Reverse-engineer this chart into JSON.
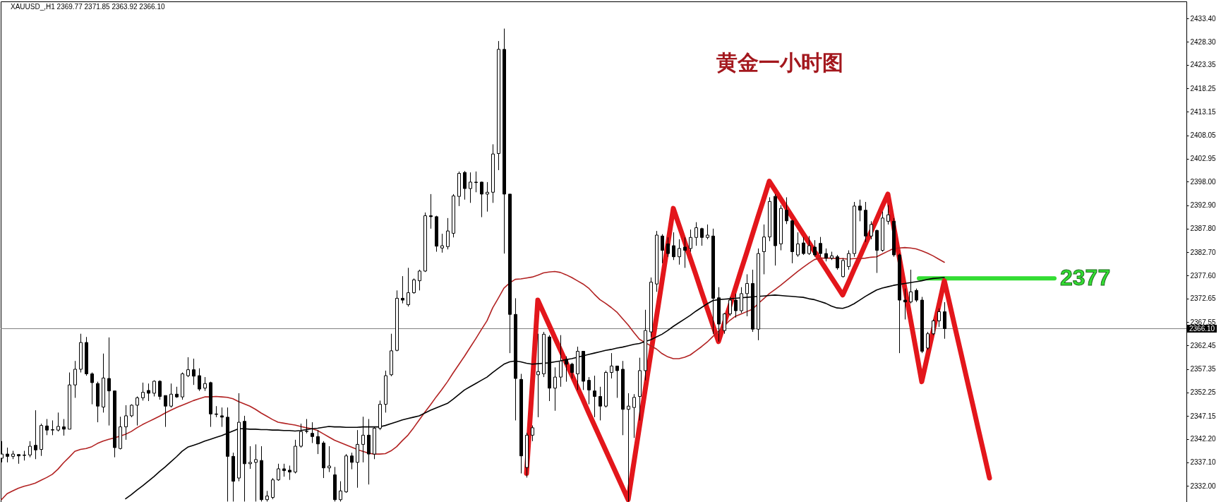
{
  "chart_data": {
    "type": "candlestick",
    "title": "黄金一小时图",
    "subtitle": "XAUUSD_,H1 2369.77 2371.85 2363.92 2366.10",
    "color": "#000000",
    "categories": [
      null,
      null,
      null,
      null,
      null,
      null,
      null,
      null,
      null,
      null,
      null,
      null,
      null,
      null,
      null,
      null,
      null,
      null,
      null,
      null,
      null,
      null,
      null,
      null,
      null,
      null,
      null,
      null,
      null,
      null,
      null,
      null,
      null,
      null,
      null,
      null,
      null,
      null,
      null,
      null,
      null,
      null,
      null,
      null,
      null,
      null,
      null,
      null,
      null,
      null,
      null,
      null,
      null,
      null,
      null,
      null,
      null,
      null,
      null,
      null,
      null,
      null,
      null,
      null,
      null,
      null,
      null,
      null,
      null,
      null,
      null,
      null,
      null,
      null,
      null,
      null,
      null,
      null,
      null,
      null,
      null,
      null,
      null,
      null,
      null,
      null,
      null,
      null,
      null,
      null,
      null,
      null,
      null,
      null,
      null,
      null,
      null,
      null,
      null,
      null,
      null,
      null,
      null,
      null,
      null,
      null,
      null,
      null,
      null,
      null,
      null,
      null,
      null,
      null,
      null,
      null,
      null,
      null,
      null,
      null,
      null,
      null,
      null,
      null,
      null,
      null,
      null,
      null,
      null,
      null,
      null,
      null,
      null,
      null,
      null,
      null,
      null,
      null,
      null,
      null,
      null,
      null,
      null,
      null,
      null,
      null,
      null,
      null,
      null,
      null,
      null,
      null,
      null,
      null,
      null,
      null,
      null,
      null,
      null,
      null,
      null,
      null,
      null,
      null,
      null,
      null,
      null,
      null,
      null,
      null,
      null,
      null,
      null,
      null,
      null,
      null,
      null,
      null,
      null,
      null,
      null,
      null,
      null,
      null,
      null,
      null,
      null,
      null,
      null,
      null,
      null,
      null,
      null,
      null,
      null,
      null,
      null,
      null,
      null,
      null,
      null,
      null,
      null,
      null,
      null,
      null,
      null,
      null,
      null,
      null
    ],
    "ohlc": [
      [
        2338.0,
        2341.7,
        2337.1,
        2338.9
      ],
      [
        2338.9,
        2340.3,
        2337.1,
        2338.4
      ],
      [
        2338.4,
        2339.6,
        2337.8,
        2338.9
      ],
      [
        2338.8,
        2338.8,
        2336.8,
        2338.5
      ],
      [
        2338.6,
        2339.6,
        2337.5,
        2338.7
      ],
      [
        2338.7,
        2341.7,
        2338.2,
        2340.6
      ],
      [
        2340.8,
        2348.4,
        2337.8,
        2339.8
      ],
      [
        2339.9,
        2345.5,
        2338.5,
        2345.1
      ],
      [
        2345.0,
        2346.5,
        2343.0,
        2344.1
      ],
      [
        2344.1,
        2346.2,
        2343.0,
        2344.2
      ],
      [
        2344.1,
        2347.9,
        2343.8,
        2344.9
      ],
      [
        2344.8,
        2346.5,
        2342.9,
        2344.3
      ],
      [
        2344.3,
        2356.6,
        2344.3,
        2353.9
      ],
      [
        2353.9,
        2359.1,
        2351.1,
        2357.3
      ],
      [
        2357.3,
        2365.0,
        2356.6,
        2363.1
      ],
      [
        2363.1,
        2364.3,
        2355.9,
        2356.3
      ],
      [
        2356.3,
        2356.6,
        2349.7,
        2354.4
      ],
      [
        2354.2,
        2354.6,
        2345.8,
        2349.3
      ],
      [
        2349.1,
        2360.7,
        2347.9,
        2355.4
      ],
      [
        2355.3,
        2364.2,
        2345.1,
        2352.6
      ],
      [
        2352.6,
        2352.6,
        2338.2,
        2340.3
      ],
      [
        2340.1,
        2347.0,
        2339.9,
        2344.8
      ],
      [
        2344.8,
        2349.5,
        2342.0,
        2347.2
      ],
      [
        2347.2,
        2349.7,
        2346.9,
        2349.5
      ],
      [
        2349.5,
        2351.4,
        2345.1,
        2351.1
      ],
      [
        2351.1,
        2354.4,
        2350.5,
        2352.3
      ],
      [
        2352.7,
        2354.2,
        2350.4,
        2352.1
      ],
      [
        2352.1,
        2354.9,
        2351.4,
        2354.7
      ],
      [
        2354.7,
        2354.9,
        2350.7,
        2351.4
      ],
      [
        2351.6,
        2351.6,
        2344.8,
        2349.3
      ],
      [
        2349.3,
        2354.2,
        2349.0,
        2351.9
      ],
      [
        2351.9,
        2353.5,
        2351.1,
        2351.3
      ],
      [
        2351.3,
        2356.6,
        2350.7,
        2356.3
      ],
      [
        2355.9,
        2359.9,
        2355.6,
        2357.2
      ],
      [
        2357.2,
        2359.6,
        2353.9,
        2355.8
      ],
      [
        2355.9,
        2357.5,
        2352.6,
        2353.0
      ],
      [
        2353.2,
        2355.6,
        2352.6,
        2354.2
      ],
      [
        2354.4,
        2354.6,
        2344.8,
        2347.6
      ],
      [
        2347.6,
        2349.3,
        2346.9,
        2347.5
      ],
      [
        2347.2,
        2349.0,
        2344.8,
        2346.9
      ],
      [
        2346.9,
        2349.0,
        2328.6,
        2338.4
      ],
      [
        2338.4,
        2339.2,
        2328.6,
        2333.0
      ],
      [
        2333.7,
        2352.1,
        2333.0,
        2345.8
      ],
      [
        2346.0,
        2347.2,
        2328.6,
        2336.8
      ],
      [
        2336.8,
        2340.6,
        2335.7,
        2337.1
      ],
      [
        2337.1,
        2341.0,
        2328.6,
        2337.7
      ],
      [
        2337.5,
        2340.6,
        2328.6,
        2329.0
      ],
      [
        2329.0,
        2330.9,
        2328.6,
        2329.8
      ],
      [
        2329.5,
        2333.7,
        2329.1,
        2333.3
      ],
      [
        2333.3,
        2336.8,
        2333.1,
        2335.7
      ],
      [
        2335.7,
        2336.8,
        2334.0,
        2335.3
      ],
      [
        2335.4,
        2336.4,
        2333.3,
        2335.0
      ],
      [
        2335.0,
        2342.0,
        2334.7,
        2340.6
      ],
      [
        2340.6,
        2345.5,
        2340.3,
        2343.8
      ],
      [
        2343.8,
        2346.5,
        2343.4,
        2343.9
      ],
      [
        2343.4,
        2345.8,
        2341.3,
        2342.7
      ],
      [
        2342.7,
        2344.1,
        2338.9,
        2341.1
      ],
      [
        2341.3,
        2341.7,
        2333.7,
        2335.9
      ],
      [
        2335.9,
        2340.6,
        2335.0,
        2336.3
      ],
      [
        2334.4,
        2336.1,
        2328.6,
        2329.0
      ],
      [
        2329.0,
        2333.0,
        2328.6,
        2330.9
      ],
      [
        2330.7,
        2338.9,
        2330.5,
        2338.5
      ],
      [
        2338.5,
        2339.2,
        2335.6,
        2337.1
      ],
      [
        2337.1,
        2344.1,
        2331.6,
        2341.0
      ],
      [
        2341.0,
        2347.0,
        2337.1,
        2343.0
      ],
      [
        2343.0,
        2346.5,
        2332.3,
        2338.9
      ],
      [
        2338.9,
        2344.8,
        2337.8,
        2344.5
      ],
      [
        2344.5,
        2350.5,
        2344.1,
        2349.7
      ],
      [
        2349.7,
        2357.0,
        2347.9,
        2355.9
      ],
      [
        2356.1,
        2365.0,
        2355.8,
        2361.3
      ],
      [
        2361.4,
        2374.4,
        2361.2,
        2372.7
      ],
      [
        2372.7,
        2377.5,
        2371.6,
        2372.3
      ],
      [
        2371.3,
        2379.3,
        2370.9,
        2373.9
      ],
      [
        2373.9,
        2377.0,
        2373.7,
        2376.7
      ],
      [
        2376.5,
        2378.9,
        2374.4,
        2378.6
      ],
      [
        2378.6,
        2391.3,
        2378.4,
        2390.6
      ],
      [
        2390.6,
        2395.3,
        2387.8,
        2390.4
      ],
      [
        2390.4,
        2390.6,
        2382.8,
        2384.0
      ],
      [
        2383.6,
        2386.7,
        2382.6,
        2384.1
      ],
      [
        2383.9,
        2390.1,
        2383.3,
        2387.3
      ],
      [
        2386.8,
        2395.3,
        2385.9,
        2394.9
      ],
      [
        2394.8,
        2400.2,
        2392.7,
        2399.8
      ],
      [
        2400.0,
        2400.3,
        2394.1,
        2396.5
      ],
      [
        2396.5,
        2400.0,
        2393.4,
        2397.9
      ],
      [
        2397.9,
        2400.2,
        2395.7,
        2397.8
      ],
      [
        2397.9,
        2398.0,
        2390.3,
        2395.3
      ],
      [
        2395.3,
        2397.9,
        2391.5,
        2395.7
      ],
      [
        2395.7,
        2406.1,
        2393.4,
        2404.0
      ],
      [
        2404.1,
        2428.5,
        2400.5,
        2426.7
      ],
      [
        2426.7,
        2431.2,
        2382.4,
        2395.3
      ],
      [
        2395.3,
        2395.3,
        2360.8,
        2369.2
      ],
      [
        2369.2,
        2372.7,
        2346.2,
        2355.3
      ],
      [
        2355.1,
        2356.3,
        2334.7,
        2338.5
      ],
      [
        2336.0,
        2343.5,
        2333.8,
        2343.0
      ],
      [
        2343.0,
        2345.1,
        2341.7,
        2344.6
      ],
      [
        2356.1,
        2365.0,
        2346.9,
        2356.8
      ],
      [
        2356.3,
        2365.4,
        2355.6,
        2364.9
      ],
      [
        2364.3,
        2364.7,
        2350.4,
        2353.2
      ],
      [
        2353.2,
        2357.7,
        2348.3,
        2355.6
      ],
      [
        2355.6,
        2364.7,
        2353.5,
        2359.1
      ],
      [
        2359.4,
        2360.1,
        2354.6,
        2358.4
      ],
      [
        2358.4,
        2358.7,
        2355.3,
        2356.6
      ],
      [
        2356.3,
        2362.2,
        2352.8,
        2361.2
      ],
      [
        2361.2,
        2361.2,
        2352.8,
        2354.7
      ],
      [
        2354.9,
        2355.6,
        2349.7,
        2352.8
      ],
      [
        2352.6,
        2355.9,
        2346.9,
        2351.4
      ],
      [
        2351.4,
        2353.5,
        2346.2,
        2349.3
      ],
      [
        2349.3,
        2357.0,
        2349.0,
        2356.6
      ],
      [
        2356.6,
        2360.8,
        2355.3,
        2358.0
      ],
      [
        2358.0,
        2358.0,
        2351.1,
        2357.0
      ],
      [
        2357.3,
        2359.1,
        2343.0,
        2348.6
      ],
      [
        2348.6,
        2352.1,
        2328.6,
        2349.3
      ],
      [
        2349.0,
        2351.9,
        2342.4,
        2351.2
      ],
      [
        2351.4,
        2359.8,
        2346.2,
        2357.0
      ],
      [
        2357.0,
        2370.2,
        2354.9,
        2365.7
      ],
      [
        2365.4,
        2377.2,
        2364.3,
        2376.2
      ],
      [
        2375.8,
        2387.3,
        2374.1,
        2386.4
      ],
      [
        2386.2,
        2386.6,
        2380.3,
        2383.1
      ],
      [
        2384.5,
        2385.9,
        2381.7,
        2382.4
      ],
      [
        2384.1,
        2387.0,
        2381.0,
        2381.7
      ],
      [
        2381.7,
        2385.5,
        2380.0,
        2383.5
      ],
      [
        2383.8,
        2385.9,
        2379.3,
        2383.1
      ],
      [
        2383.5,
        2387.6,
        2382.8,
        2385.9
      ],
      [
        2385.9,
        2389.2,
        2384.1,
        2388.0
      ],
      [
        2387.8,
        2388.0,
        2384.1,
        2385.9
      ],
      [
        2385.9,
        2388.7,
        2385.5,
        2386.4
      ],
      [
        2386.2,
        2387.8,
        2365.0,
        2372.7
      ],
      [
        2372.8,
        2375.1,
        2363.3,
        2367.1
      ],
      [
        2365.7,
        2369.5,
        2365.0,
        2369.3
      ],
      [
        2369.3,
        2373.0,
        2368.9,
        2372.3
      ],
      [
        2372.3,
        2373.7,
        2368.5,
        2370.0
      ],
      [
        2370.0,
        2375.1,
        2369.5,
        2373.7
      ],
      [
        2373.7,
        2377.9,
        2368.8,
        2375.9
      ],
      [
        2375.9,
        2378.9,
        2365.4,
        2366.0
      ],
      [
        2366.0,
        2383.5,
        2363.6,
        2382.4
      ],
      [
        2382.8,
        2388.7,
        2377.9,
        2386.0
      ],
      [
        2386.0,
        2394.6,
        2385.1,
        2393.7
      ],
      [
        2394.8,
        2395.3,
        2379.8,
        2384.1
      ],
      [
        2384.5,
        2392.9,
        2383.1,
        2392.2
      ],
      [
        2391.8,
        2394.6,
        2388.8,
        2389.5
      ],
      [
        2389.5,
        2389.7,
        2380.3,
        2382.8
      ],
      [
        2382.1,
        2387.0,
        2381.7,
        2384.5
      ],
      [
        2384.7,
        2385.9,
        2382.1,
        2382.4
      ],
      [
        2382.4,
        2386.2,
        2382.1,
        2384.1
      ],
      [
        2383.8,
        2385.3,
        2381.7,
        2382.1
      ],
      [
        2384.6,
        2386.0,
        2381.7,
        2382.4
      ],
      [
        2382.4,
        2383.5,
        2380.7,
        2381.4
      ],
      [
        2381.4,
        2382.8,
        2381.0,
        2381.9
      ],
      [
        2381.7,
        2382.1,
        2378.9,
        2379.3
      ],
      [
        2377.4,
        2381.4,
        2377.2,
        2380.9
      ],
      [
        2379.6,
        2383.1,
        2378.9,
        2382.4
      ],
      [
        2382.4,
        2393.6,
        2381.7,
        2392.7
      ],
      [
        2392.7,
        2394.1,
        2389.4,
        2391.8
      ],
      [
        2391.8,
        2393.6,
        2384.9,
        2386.2
      ],
      [
        2386.2,
        2389.4,
        2385.5,
        2388.7
      ],
      [
        2387.4,
        2387.6,
        2378.2,
        2383.1
      ],
      [
        2383.1,
        2391.5,
        2382.8,
        2390.1
      ],
      [
        2389.4,
        2392.9,
        2388.7,
        2390.8
      ],
      [
        2389.4,
        2390.1,
        2381.7,
        2382.1
      ],
      [
        2382.1,
        2382.4,
        2360.8,
        2372.3
      ],
      [
        2372.3,
        2374.8,
        2368.1,
        2371.9
      ],
      [
        2371.9,
        2378.9,
        2371.6,
        2374.1
      ],
      [
        2374.4,
        2374.8,
        2371.9,
        2372.3
      ],
      [
        2372.3,
        2373.0,
        2360.8,
        2361.2
      ],
      [
        2361.9,
        2365.4,
        2361.5,
        2365.0
      ],
      [
        2365.0,
        2368.1,
        2364.7,
        2367.8
      ],
      [
        2367.8,
        2370.5,
        2366.5,
        2369.8
      ],
      [
        2369.77,
        2371.85,
        2363.92,
        2366.1
      ],
      null,
      null,
      null,
      null,
      null,
      null,
      null,
      null,
      null,
      null,
      null,
      null,
      null,
      null,
      null,
      null,
      null,
      null,
      null,
      null,
      null,
      null,
      null,
      null,
      null,
      null,
      null,
      null,
      null,
      null,
      null,
      null,
      null,
      null,
      null,
      null,
      null,
      null,
      null,
      null,
      null,
      null
    ],
    "series": [
      {
        "type": "line",
        "color": "#b22222",
        "values": [
          2329.0,
          2330.3,
          2330.9,
          2331.5,
          2331.9,
          2332.2,
          2332.6,
          2333.2,
          2333.8,
          2334.5,
          2335.6,
          2337.0,
          2338.2,
          2339.5,
          2339.9,
          2340.1,
          2340.5,
          2341.2,
          2341.7,
          2342.1,
          2342.4,
          2342.8,
          2343.2,
          2343.8,
          2344.6,
          2345.3,
          2345.9,
          2346.5,
          2347.1,
          2347.8,
          2348.4,
          2349.0,
          2349.5,
          2350.0,
          2350.5,
          2350.9,
          2351.3,
          2351.3,
          2351.4,
          2351.3,
          2351.2,
          2350.9,
          2350.3,
          2349.8,
          2349.3,
          2348.6,
          2347.8,
          2347.1,
          2346.4,
          2345.8,
          2345.6,
          2345.4,
          2345.2,
          2344.9,
          2344.6,
          2344.4,
          2344.0,
          2343.3,
          2342.6,
          2341.9,
          2341.4,
          2340.9,
          2340.4,
          2339.9,
          2339.5,
          2339.1,
          2338.9,
          2338.9,
          2339.0,
          2339.6,
          2340.5,
          2341.8,
          2343.0,
          2344.6,
          2346.3,
          2348.0,
          2349.6,
          2351.3,
          2352.9,
          2354.6,
          2356.5,
          2358.3,
          2360.1,
          2362.0,
          2363.9,
          2365.9,
          2367.8,
          2370.6,
          2372.7,
          2374.9,
          2376.0,
          2376.8,
          2376.9,
          2377.1,
          2377.3,
          2377.7,
          2378.2,
          2378.4,
          2378.5,
          2378.3,
          2377.8,
          2377.2,
          2376.5,
          2375.8,
          2374.9,
          2373.6,
          2372.4,
          2371.6,
          2370.7,
          2369.7,
          2368.3,
          2366.9,
          2365.3,
          2363.8,
          2363.1,
          2362.4,
          2361.7,
          2360.7,
          2360.0,
          2359.6,
          2359.6,
          2359.9,
          2360.4,
          2361.3,
          2362.2,
          2363.2,
          2364.4,
          2365.5,
          2366.7,
          2367.9,
          2368.8,
          2369.3,
          2369.8,
          2370.3,
          2371.5,
          2372.6,
          2373.7,
          2374.6,
          2375.5,
          2376.5,
          2377.5,
          2378.5,
          2379.4,
          2380.3,
          2381.1,
          2381.4,
          2381.4,
          2381.4,
          2381.3,
          2381.3,
          2381.2,
          2381.3,
          2381.3,
          2381.4,
          2381.6,
          2381.7,
          2382.3,
          2382.9,
          2383.5,
          2383.6,
          2383.7,
          2383.6,
          2383.4,
          2383.0,
          2382.5,
          2381.9,
          2381.2,
          2380.5,
          null,
          null,
          null,
          null,
          null,
          null,
          null,
          null,
          null,
          null,
          null,
          null,
          null,
          null,
          null,
          null,
          null,
          null,
          null,
          null,
          null,
          null,
          null,
          null,
          null,
          null,
          null,
          null,
          null,
          null,
          null,
          null,
          null,
          null,
          null,
          null,
          null,
          null,
          null,
          null,
          null,
          null
        ]
      },
      {
        "type": "line",
        "color": "#000000",
        "values": [
          null,
          null,
          null,
          null,
          null,
          null,
          null,
          null,
          null,
          null,
          null,
          null,
          null,
          null,
          null,
          null,
          null,
          null,
          null,
          null,
          null,
          null,
          2329.2,
          2330.1,
          2331.1,
          2332.0,
          2333.0,
          2334.0,
          2335.1,
          2336.1,
          2337.2,
          2338.3,
          2339.5,
          2340.4,
          2340.8,
          2341.2,
          2341.7,
          2342.1,
          2342.5,
          2342.9,
          2343.4,
          2343.9,
          2344.4,
          2344.4,
          2344.3,
          2344.3,
          2344.2,
          2344.2,
          2344.1,
          2344.1,
          2344.0,
          2344.0,
          2343.9,
          2344.0,
          2344.2,
          2344.4,
          2344.5,
          2344.7,
          2344.9,
          2344.8,
          2344.8,
          2344.7,
          2344.7,
          2344.7,
          2344.8,
          2344.8,
          2344.8,
          2344.8,
          2345.1,
          2345.5,
          2345.9,
          2346.3,
          2346.6,
          2346.9,
          2347.2,
          2347.8,
          2348.4,
          2348.9,
          2349.4,
          2349.9,
          2350.8,
          2351.8,
          2352.8,
          2353.5,
          2354.2,
          2354.9,
          2355.6,
          2356.6,
          2357.5,
          2358.4,
          2358.9,
          2359.1,
          2358.9,
          2358.6,
          2358.4,
          2358.5,
          2358.6,
          2358.7,
          2358.9,
          2359.1,
          2359.4,
          2359.6,
          2359.9,
          2360.2,
          2360.5,
          2360.8,
          2361.1,
          2361.4,
          2361.6,
          2361.9,
          2362.1,
          2362.4,
          2362.7,
          2362.9,
          2363.3,
          2363.7,
          2364.3,
          2364.9,
          2365.7,
          2366.6,
          2367.4,
          2368.2,
          2369.0,
          2369.9,
          2370.7,
          2371.5,
          2372.2,
          2372.4,
          2372.5,
          2372.6,
          2372.7,
          2372.8,
          2372.9,
          2373.0,
          2373.1,
          2373.2,
          2373.3,
          2373.4,
          2373.3,
          2373.2,
          2373.1,
          2373.0,
          2372.9,
          2372.6,
          2372.4,
          2372.0,
          2371.6,
          2371.0,
          2370.6,
          2370.5,
          2370.9,
          2371.5,
          2372.3,
          2373.1,
          2373.8,
          2374.5,
          2374.9,
          2375.2,
          2375.5,
          2375.7,
          2375.9,
          2376.1,
          2376.3,
          2376.5,
          2376.8,
          2377.0,
          2377.1,
          2377.2,
          null,
          null,
          null,
          null,
          null,
          null,
          null,
          null,
          null,
          null,
          null,
          null,
          null,
          null,
          null,
          null,
          null,
          null,
          null,
          null,
          null,
          null,
          null,
          null,
          null,
          null,
          null,
          null,
          null,
          null,
          null,
          null,
          null,
          null,
          null,
          null,
          null,
          null,
          null,
          null,
          null,
          null
        ]
      },
      {
        "type": "line",
        "color": "#e3161b",
        "values": [
          null,
          null,
          null,
          null,
          null,
          null,
          null,
          null,
          null,
          null,
          null,
          null,
          null,
          null,
          null,
          null,
          null,
          null,
          null,
          null,
          null,
          null,
          null,
          null,
          null,
          null,
          null,
          null,
          null,
          null,
          null,
          null,
          null,
          null,
          null,
          null,
          null,
          null,
          null,
          null,
          null,
          null,
          null,
          null,
          null,
          null,
          null,
          null,
          null,
          null,
          null,
          null,
          null,
          null,
          null,
          null,
          null,
          null,
          null,
          null,
          null,
          null,
          null,
          null,
          null,
          null,
          null,
          null,
          null,
          null,
          null,
          null,
          null,
          null,
          null,
          null,
          null,
          null,
          null,
          null,
          null,
          null,
          null,
          null,
          null,
          null,
          null,
          null,
          null,
          null,
          null,
          null,
          null,
          2334.7,
          2353.5,
          2372.3,
          2369.6,
          2366.9,
          2364.2,
          2361.5,
          2358.8,
          2356.1,
          2353.4,
          2350.7,
          2347.9,
          2345.2,
          2342.5,
          2339.8,
          2337.1,
          2334.4,
          2331.7,
          2329.0,
          2336.9,
          2344.8,
          2352.7,
          2360.6,
          2368.5,
          2376.4,
          2384.3,
          2392.2,
          2388.6,
          2385.0,
          2381.4,
          2377.8,
          2374.1,
          2370.5,
          2366.9,
          2363.3,
          2367.2,
          2371.0,
          2374.9,
          2378.8,
          2382.6,
          2386.5,
          2390.4,
          2394.2,
          2398.1,
          2396.2,
          2394.3,
          2392.4,
          2390.5,
          2388.6,
          2386.7,
          2384.8,
          2382.9,
          2381.0,
          2379.1,
          2377.2,
          2375.3,
          2373.4,
          2376.1,
          2378.9,
          2381.6,
          2384.4,
          2387.1,
          2389.8,
          2392.6,
          2395.3,
          2388.5,
          2381.7,
          2374.9,
          2368.2,
          2361.4,
          2354.6,
          2360.1,
          2365.6,
          2371.0,
          2376.5,
          2371.2,
          2365.8,
          2360.5,
          2355.1,
          2349.8,
          2344.4,
          2339.1,
          2333.7,
          null,
          null,
          null,
          null,
          null,
          null,
          null,
          null,
          null,
          null,
          null,
          null,
          null,
          null,
          null,
          null,
          null,
          null,
          null,
          null,
          null,
          null,
          null,
          null,
          null,
          null,
          null,
          null,
          null,
          null,
          null,
          null,
          null,
          null
        ]
      }
    ],
    "ref_lines": [
      {
        "axis": "y",
        "value": 2366.1,
        "label": "2366.10",
        "color": "#808080"
      },
      {
        "axis": "y",
        "value": 2377,
        "label": "2377",
        "color": "#33dd33"
      }
    ],
    "ylim": [
      2328.5,
      2437.1
    ],
    "yticks": [
      {
        "value": 2332.0,
        "label": "2332.00"
      },
      {
        "value": 2337.1,
        "label": "2337.10"
      },
      {
        "value": 2342.2,
        "label": "2342.20"
      },
      {
        "value": 2347.15,
        "label": "2347.15"
      },
      {
        "value": 2352.25,
        "label": "2352.25"
      },
      {
        "value": 2357.35,
        "label": "2357.35"
      },
      {
        "value": 2362.45,
        "label": "2362.45"
      },
      {
        "value": 2367.55,
        "label": "2367.55"
      },
      {
        "value": 2372.65,
        "label": "2372.65"
      },
      {
        "value": 2377.6,
        "label": "2377.60"
      },
      {
        "value": 2382.7,
        "label": "2382.70"
      },
      {
        "value": 2387.8,
        "label": "2387.80"
      },
      {
        "value": 2392.9,
        "label": "2392.90"
      },
      {
        "value": 2398.0,
        "label": "2398.00"
      },
      {
        "value": 2402.95,
        "label": "2402.95"
      },
      {
        "value": 2408.05,
        "label": "2408.05"
      },
      {
        "value": 2413.15,
        "label": "2413.15"
      },
      {
        "value": 2418.25,
        "label": "2418.25"
      },
      {
        "value": 2423.35,
        "label": "2423.35"
      },
      {
        "value": 2428.3,
        "label": "2428.30"
      },
      {
        "value": 2433.4,
        "label": "2433.40"
      }
    ],
    "tick_labels": "y"
  }
}
